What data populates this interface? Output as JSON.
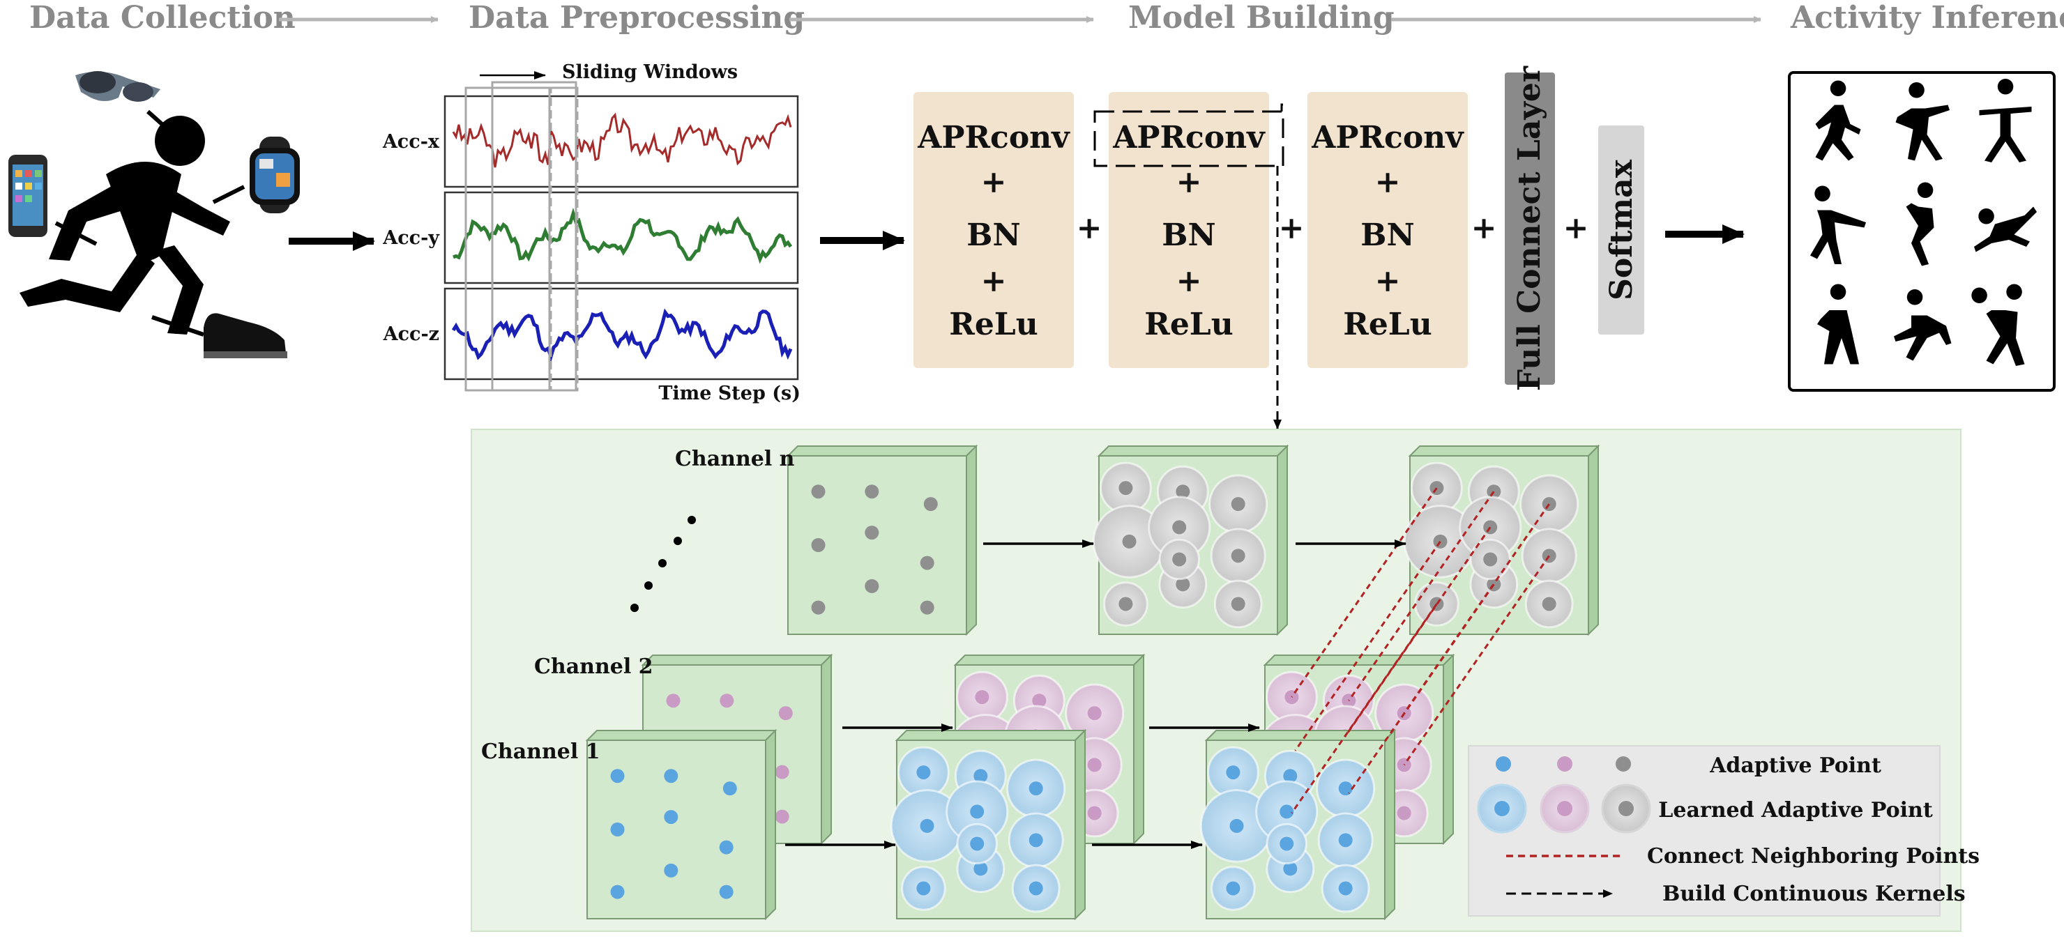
{
  "stages": [
    "Data Collection",
    "Data Preprocessing",
    "Model Building",
    "Activity Inference"
  ],
  "signals": {
    "title": "Sliding Windows",
    "rows": [
      "Acc-x",
      "Acc-y",
      "Acc-z"
    ],
    "xlabel": "Time Step (s)",
    "colors": [
      "#a52a2a",
      "#2e7d32",
      "#1a1fb5"
    ]
  },
  "blocks": [
    {
      "lines": [
        "APRconv",
        "+",
        "BN",
        "+",
        "ReLu"
      ]
    },
    {
      "lines": [
        "APRconv",
        "+",
        "BN",
        "+",
        "ReLu"
      ]
    },
    {
      "lines": [
        "APRconv",
        "+",
        "BN",
        "+",
        "ReLu"
      ]
    }
  ],
  "plus": "+",
  "fc_label": "Full Connect Layer",
  "softmax_label": "Softmax",
  "channels": [
    "Channel n",
    "Channel 2",
    "Channel 1"
  ],
  "legend": {
    "items": [
      "Adaptive Point",
      "Learned Adaptive Point",
      "Connect Neighboring Points",
      "Build Continuous Kernels"
    ],
    "colors": {
      "blue": "#5aa5df",
      "pink": "#c89ac4",
      "gray": "#8f8f8f",
      "red": "#b22222"
    }
  },
  "colors": {
    "block_fill": "#f2e3cf",
    "panel_fill": "#e9f4e6",
    "cube_fill": "#d3e9ce",
    "fc_fill": "#8a8a8a",
    "softmax_fill": "#d6d6d6"
  }
}
